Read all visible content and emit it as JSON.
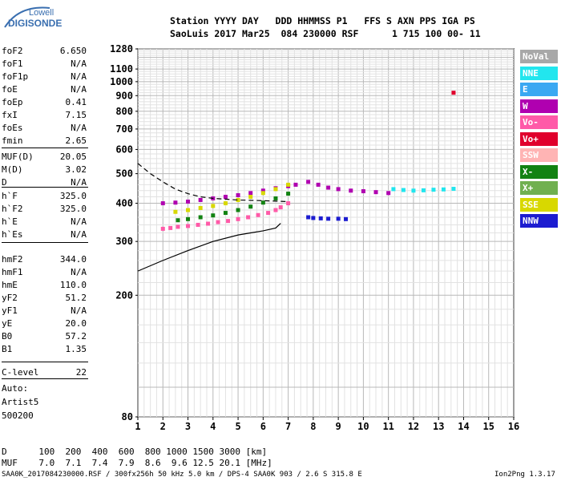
{
  "logo": {
    "top": "Lowell",
    "bottom": "DIGISONDE"
  },
  "header": {
    "line1": "Station YYYY DAY   DDD HHMMSS P1   FFS S AXN PPS IGA PS",
    "line2": "SaoLuis 2017 Mar25  084 230000 RSF      1 715 100 00- 11"
  },
  "params": [
    {
      "label": "foF2",
      "value": "6.650"
    },
    {
      "label": "foF1",
      "value": "N/A"
    },
    {
      "label": "foF1p",
      "value": "N/A"
    },
    {
      "label": "foE",
      "value": "N/A"
    },
    {
      "label": "foEp",
      "value": "0.41"
    },
    {
      "label": "fxI",
      "value": "7.15"
    },
    {
      "label": "foEs",
      "value": "N/A"
    },
    {
      "label": "fmin",
      "value": "2.65"
    },
    {
      "label": "MUF(D)",
      "value": "20.05"
    },
    {
      "label": "M(D)",
      "value": "3.02"
    },
    {
      "label": "D",
      "value": "N/A"
    },
    {
      "label": "h`F",
      "value": "325.0"
    },
    {
      "label": "h`F2",
      "value": "325.0"
    },
    {
      "label": "h`E",
      "value": "N/A"
    },
    {
      "label": "h`Es",
      "value": "N/A"
    },
    {
      "label": "hmF2",
      "value": "344.0"
    },
    {
      "label": "hmF1",
      "value": "N/A"
    },
    {
      "label": "hmE",
      "value": "110.0"
    },
    {
      "label": "yF2",
      "value": "51.2"
    },
    {
      "label": "yF1",
      "value": "N/A"
    },
    {
      "label": "yE",
      "value": "20.0"
    },
    {
      "label": "B0",
      "value": "57.2"
    },
    {
      "label": "B1",
      "value": "1.35"
    },
    {
      "label": "C-level",
      "value": "22"
    }
  ],
  "notes": {
    "auto": "Auto:",
    "artist": "Artist5",
    "version": "500200"
  },
  "legend": [
    {
      "label": "NoVal",
      "color": "#a8a8a8"
    },
    {
      "label": "NNE",
      "color": "#22e6ee"
    },
    {
      "label": "E",
      "color": "#3aa8f2"
    },
    {
      "label": "W",
      "color": "#b000b0"
    },
    {
      "label": "Vo-",
      "color": "#ff5aa8"
    },
    {
      "label": "Vo+",
      "color": "#e0002c"
    },
    {
      "label": "SSW",
      "color": "#ffb4b4"
    },
    {
      "label": "X-",
      "color": "#128212"
    },
    {
      "label": "X+",
      "color": "#70b050"
    },
    {
      "label": "SSE",
      "color": "#d8d800"
    },
    {
      "label": "NNW",
      "color": "#1c1cd0"
    }
  ],
  "footer": {
    "d_row": "D      100  200  400  600  800 1000 1500 3000 [km]",
    "muf_row": "MUF    7.0  7.1  7.4  7.9  8.6  9.6 12.5 20.1 [MHz]",
    "file_line": "SAA0K_2017084230000.RSF / 300fx256h 50 kHz 5.0 km / DPS-4 SAA0K 903 / 2.6 S 315.8 E",
    "version": "Ion2Png 1.3.17"
  },
  "chart_data": {
    "type": "scatter",
    "title": "",
    "xlabel": "",
    "ylabel": "",
    "xlim": [
      1,
      16
    ],
    "ylim": [
      80,
      1280
    ],
    "x_ticks": [
      1,
      2,
      3,
      4,
      5,
      6,
      7,
      8,
      9,
      10,
      11,
      12,
      13,
      14,
      15,
      16
    ],
    "y_ticks": [
      80,
      200,
      300,
      400,
      500,
      600,
      700,
      800,
      900,
      1000,
      1100,
      1280
    ],
    "grid": true,
    "legend_placement": "right",
    "y_scale": "log",
    "series": [
      {
        "name": "Vo-",
        "color": "#ff5aa8",
        "x": [
          2.0,
          2.3,
          2.6,
          3.0,
          3.4,
          3.8,
          4.2,
          4.6,
          5.0,
          5.4,
          5.8,
          6.2,
          6.5,
          6.7,
          7.0
        ],
        "y": [
          330,
          332,
          335,
          337,
          340,
          343,
          347,
          350,
          355,
          360,
          366,
          372,
          380,
          388,
          400
        ]
      },
      {
        "name": "W",
        "color": "#b000b0",
        "x": [
          2.0,
          2.5,
          3.0,
          3.5,
          4.0,
          4.5,
          5.0,
          5.5,
          6.0,
          6.5,
          7.0,
          7.3,
          7.8,
          8.2,
          8.6,
          9.0,
          9.5,
          10.0,
          10.5,
          11.0
        ],
        "y": [
          400,
          402,
          405,
          410,
          415,
          420,
          425,
          432,
          440,
          448,
          455,
          460,
          470,
          460,
          450,
          445,
          440,
          438,
          435,
          432
        ]
      },
      {
        "name": "X-",
        "color": "#128212",
        "x": [
          2.6,
          3.0,
          3.5,
          4.0,
          4.5,
          5.0,
          5.5,
          6.0,
          6.5,
          7.0
        ],
        "y": [
          352,
          355,
          360,
          365,
          372,
          380,
          390,
          402,
          415,
          430
        ]
      },
      {
        "name": "SSE",
        "color": "#d8d800",
        "x": [
          2.5,
          3.0,
          3.5,
          4.0,
          4.5,
          5.0,
          5.5,
          6.0,
          6.5,
          7.0
        ],
        "y": [
          375,
          380,
          386,
          392,
          400,
          410,
          420,
          432,
          445,
          460
        ]
      },
      {
        "name": "NNW",
        "color": "#1c1cd0",
        "x": [
          7.8,
          8.0,
          8.3,
          8.6,
          9.0,
          9.3
        ],
        "y": [
          360,
          358,
          357,
          356,
          356,
          355
        ]
      },
      {
        "name": "NNE",
        "color": "#22e6ee",
        "x": [
          11.2,
          11.6,
          12.0,
          12.4,
          12.8,
          13.2,
          13.6
        ],
        "y": [
          445,
          442,
          440,
          441,
          443,
          444,
          446
        ]
      },
      {
        "name": "Vo+",
        "color": "#e0002c",
        "x": [
          13.6
        ],
        "y": [
          920
        ]
      }
    ],
    "profile_trace": {
      "x": [
        1.0,
        2.0,
        3.0,
        4.0,
        5.0,
        5.5,
        6.0,
        6.5,
        6.7
      ],
      "y": [
        240,
        260,
        280,
        300,
        315,
        320,
        325,
        332,
        344
      ]
    },
    "dashed_trace": {
      "x": [
        1.0,
        1.5,
        2.0,
        2.5,
        3.0,
        3.5,
        4.0,
        5.0,
        6.0,
        7.0
      ],
      "y": [
        540,
        500,
        470,
        445,
        430,
        420,
        415,
        410,
        408,
        405
      ]
    }
  }
}
